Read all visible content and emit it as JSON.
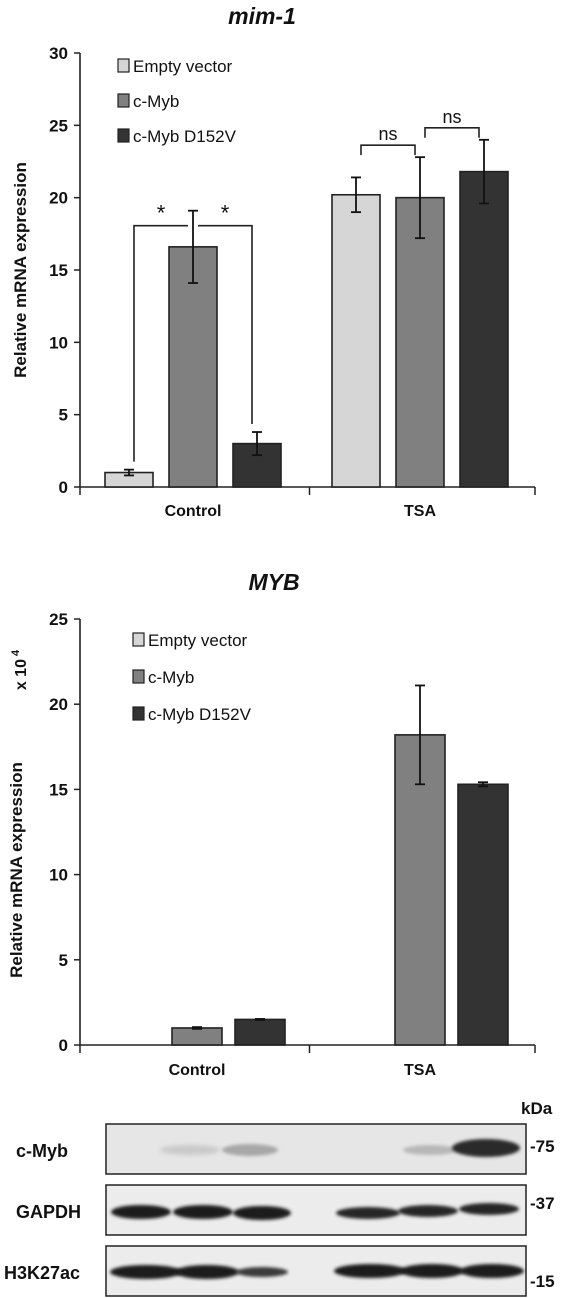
{
  "chart_data": [
    {
      "type": "bar",
      "title": "mim-1",
      "ylabel": "Relative mRNA expression",
      "ylim": [
        0,
        30
      ],
      "yticks": [
        0,
        5,
        10,
        15,
        20,
        25,
        30
      ],
      "categories": [
        "Control",
        "TSA"
      ],
      "series": [
        {
          "name": "Empty vector",
          "color": "#d6d6d6",
          "values": [
            1.0,
            20.2
          ],
          "errors": [
            0.2,
            1.2
          ]
        },
        {
          "name": "c-Myb",
          "color": "#808080",
          "values": [
            16.6,
            20.0
          ],
          "errors": [
            2.5,
            2.8
          ]
        },
        {
          "name": "c-Myb D152V",
          "color": "#333333",
          "values": [
            3.0,
            21.8
          ],
          "errors": [
            0.8,
            2.2
          ]
        }
      ],
      "legend_position": "top-left",
      "annotations": [
        {
          "group": 0,
          "from": 0,
          "to": 1,
          "text": "*"
        },
        {
          "group": 0,
          "from": 1,
          "to": 2,
          "text": "*"
        },
        {
          "group": 1,
          "from": 0,
          "to": 1,
          "text": "ns"
        },
        {
          "group": 1,
          "from": 1,
          "to": 2,
          "text": "ns"
        }
      ]
    },
    {
      "type": "bar",
      "title": "MYB",
      "ylabel": "Relative mRNA expression",
      "axis_multiplier": "x 10",
      "axis_multiplier_exp": "4",
      "ylim": [
        0,
        25
      ],
      "yticks": [
        0,
        5,
        10,
        15,
        20,
        25
      ],
      "categories": [
        "Control",
        "TSA"
      ],
      "series": [
        {
          "name": "Empty vector",
          "color": "#d6d6d6",
          "values": [
            0.0,
            0.0
          ],
          "errors": [
            0,
            0
          ]
        },
        {
          "name": "c-Myb",
          "color": "#808080",
          "values": [
            1.0,
            18.2
          ],
          "errors": [
            0.05,
            2.9
          ]
        },
        {
          "name": "c-Myb D152V",
          "color": "#333333",
          "values": [
            1.5,
            15.3
          ],
          "errors": [
            0.03,
            0.12
          ]
        }
      ],
      "legend_position": "top-left"
    }
  ],
  "blot": {
    "unit_label": "kDa",
    "rows": [
      {
        "label": "c-Myb",
        "marker": "-75"
      },
      {
        "label": "GAPDH",
        "marker": "-37"
      },
      {
        "label": "H3K27ac",
        "marker": "-15"
      }
    ]
  }
}
